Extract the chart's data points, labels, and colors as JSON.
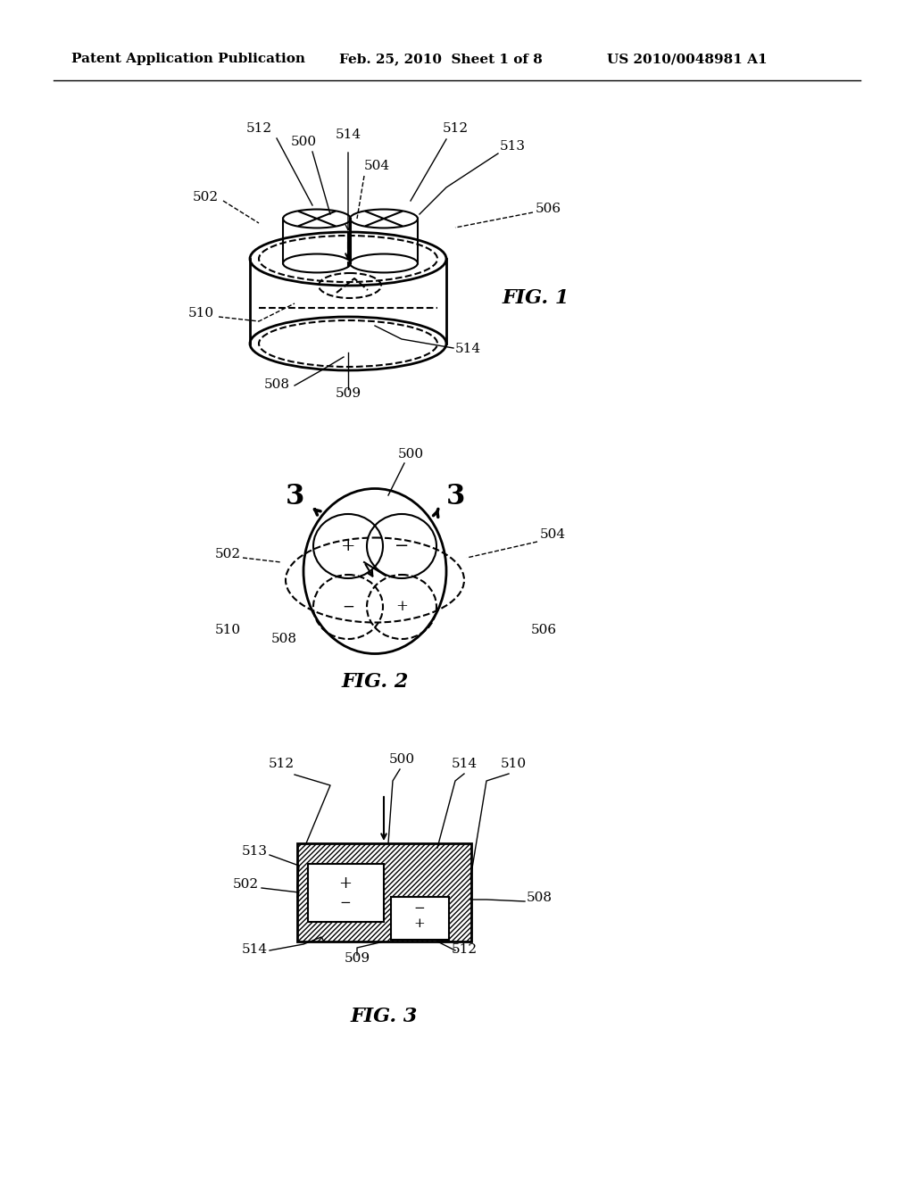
{
  "bg_color": "#ffffff",
  "text_color": "#000000",
  "header_left": "Patent Application Publication",
  "header_center": "Feb. 25, 2010  Sheet 1 of 8",
  "header_right": "US 2010/0048981 A1",
  "fig1_label": "FIG. 1",
  "fig2_label": "FIG. 2",
  "fig3_label": "FIG. 3"
}
